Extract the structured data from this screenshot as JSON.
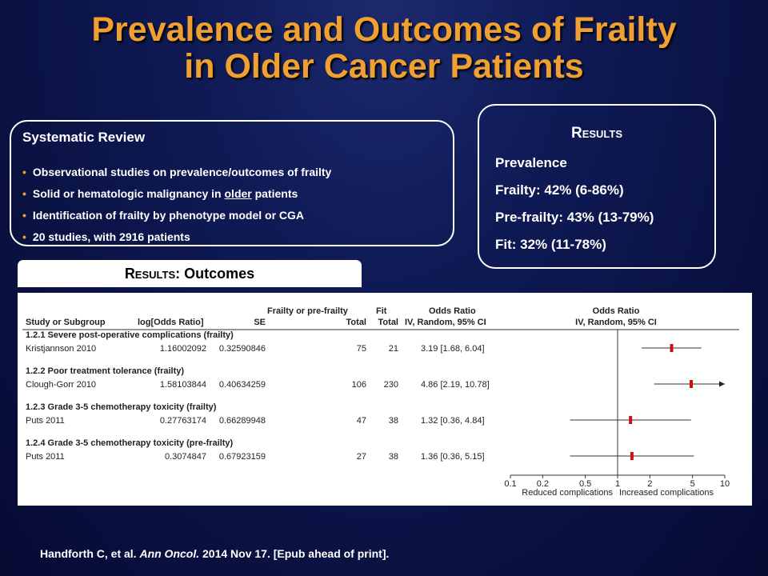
{
  "title": {
    "line1": "Prevalence and Outcomes of Frailty",
    "line2": "in Older Cancer Patients"
  },
  "systematic_review": {
    "heading": "Systematic Review",
    "bullets": [
      "Observational  studies  on prevalence/outcomes  of frailty",
      {
        "before": "Solid  or hematologic  malignancy  in ",
        "underline": "older",
        "after": " patients"
      },
      "Identification  of frailty  by phenotype  model  or CGA",
      "20 studies,  with 2916  patients"
    ]
  },
  "results": {
    "heading": "Results",
    "lines": [
      "Prevalence",
      "Frailty:  42% (6-86%)",
      "Pre-frailty:  43% (13-79%)",
      "Fit: 32% (11-78%)"
    ]
  },
  "outcomes_tab": {
    "prefix": "Results",
    "suffix": ": Outcomes"
  },
  "chart_data": {
    "type": "forest",
    "headers": {
      "study": "Study or Subgroup",
      "log_or": "log[Odds Ratio]",
      "se": "SE",
      "frailty_line1": "Frailty or pre-frailty",
      "frailty_line2": "Total",
      "fit_line1": "Fit",
      "fit_line2": "Total",
      "or_line1": "Odds Ratio",
      "or_line2": "IV, Random, 95% CI",
      "plot_line1": "Odds Ratio",
      "plot_line2": "IV, Random, 95% CI"
    },
    "subgroups": [
      {
        "label": "1.2.1 Severe post-operative complications (frailty)",
        "study": "Kristjannson 2010",
        "log_or": "1.16002092",
        "se": "0.32590846",
        "frailty_total": "75",
        "fit_total": "21",
        "ci_text": "3.19 [1.68, 6.04]",
        "or": 3.19,
        "lower": 1.68,
        "upper": 6.04
      },
      {
        "label": "1.2.2 Poor treatment tolerance (frailty)",
        "study": "Clough-Gorr 2010",
        "log_or": "1.58103844",
        "se": "0.40634259",
        "frailty_total": "106",
        "fit_total": "230",
        "ci_text": "4.86 [2.19, 10.78]",
        "or": 4.86,
        "lower": 2.19,
        "upper": 10.78
      },
      {
        "label": "1.2.3 Grade 3-5 chemotherapy toxicity (frailty)",
        "study": "Puts 2011",
        "log_or": "0.27763174",
        "se": "0.66289948",
        "frailty_total": "47",
        "fit_total": "38",
        "ci_text": "1.32 [0.36, 4.84]",
        "or": 1.32,
        "lower": 0.36,
        "upper": 4.84
      },
      {
        "label": "1.2.4 Grade 3-5 chemotherapy toxicity (pre-frailty)",
        "study": "Puts 2011",
        "log_or": "0.3074847",
        "se": "0.67923159",
        "frailty_total": "27",
        "fit_total": "38",
        "ci_text": "1.36 [0.36, 5.15]",
        "or": 1.36,
        "lower": 0.36,
        "upper": 5.15
      }
    ],
    "x_scale": "log",
    "xlim": [
      0.1,
      10
    ],
    "ticks": [
      0.1,
      0.2,
      0.5,
      1,
      2,
      5,
      10
    ],
    "tick_labels": [
      "0.1",
      "0.2",
      "0.5",
      "1",
      "2",
      "5",
      "10"
    ],
    "null_line": 1,
    "footer_left": "Reduced complications",
    "footer_right": "Increased complications",
    "marker_color": "#cc1111"
  },
  "citation": {
    "authors": "Handforth C, et al. ",
    "journal": "Ann Oncol.",
    "rest": " 2014 Nov 17. [Epub ahead of print]."
  }
}
